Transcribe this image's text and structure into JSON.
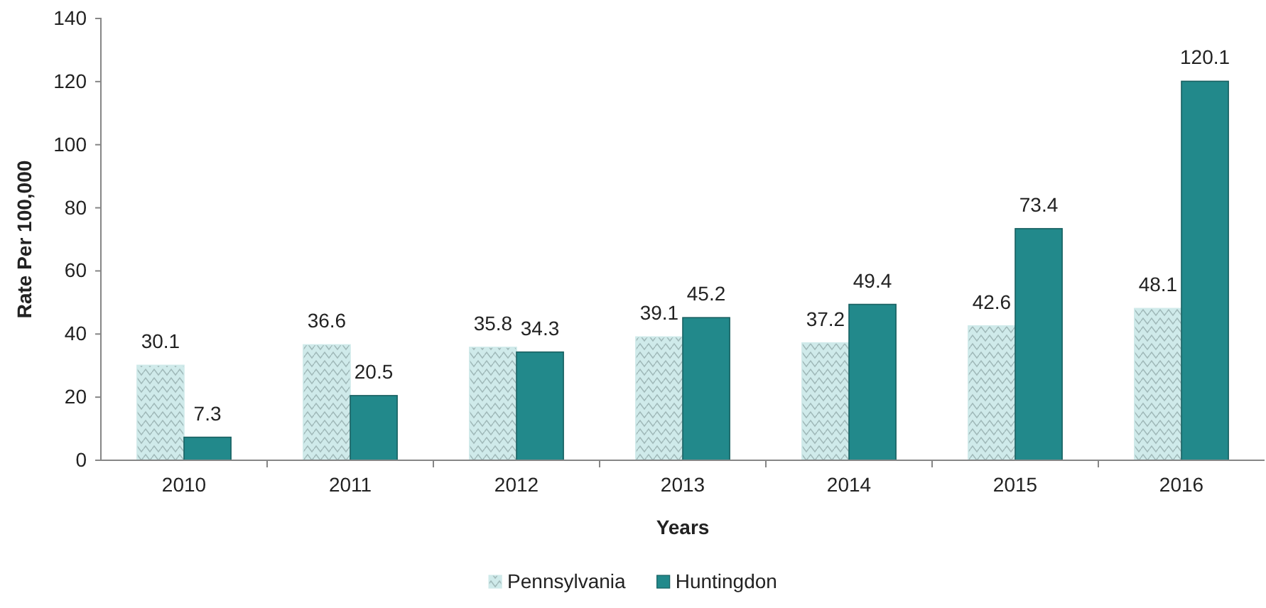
{
  "chart_data": {
    "type": "bar",
    "xlabel": "Years",
    "ylabel": "Rate Per 100,000",
    "categories": [
      "2010",
      "2011",
      "2012",
      "2013",
      "2014",
      "2015",
      "2016"
    ],
    "series": [
      {
        "name": "Pennsylvania",
        "color": "#cfeaea",
        "values": [
          30.1,
          36.6,
          35.8,
          39.1,
          37.2,
          42.6,
          48.1
        ]
      },
      {
        "name": "Huntingdon",
        "color": "#22898b",
        "values": [
          7.3,
          20.5,
          34.3,
          45.2,
          49.4,
          73.4,
          120.1
        ]
      }
    ],
    "ylim": [
      0,
      140
    ],
    "yticks": [
      0,
      20,
      40,
      60,
      80,
      100,
      120,
      140
    ],
    "data_labels": true,
    "legend": "bottom"
  }
}
